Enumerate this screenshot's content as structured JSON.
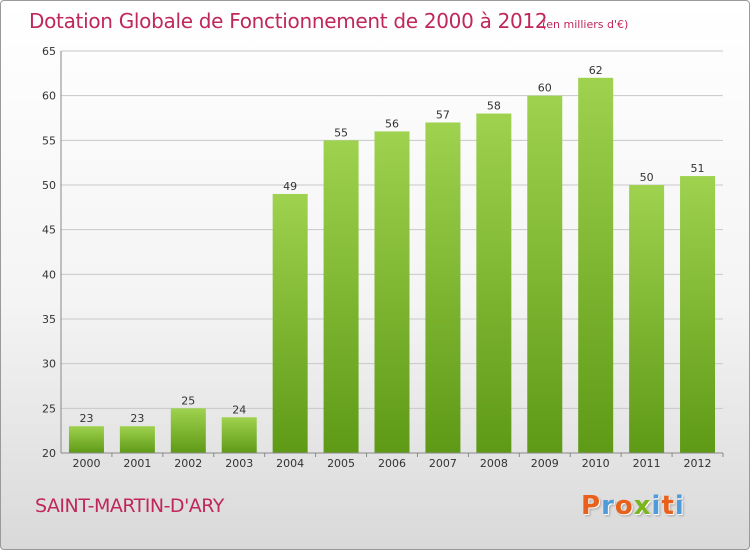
{
  "header": {
    "title": "Dotation Globale de Fonctionnement de 2000 à 2012",
    "unit": "(en milliers d'€)"
  },
  "footer": {
    "commune": "SAINT-MARTIN-D'ARY",
    "logo": "Proxiti",
    "logo_colors": [
      "#e8601c",
      "#4f9bd9",
      "#e8601c",
      "#7bb51c",
      "#4f9bd9",
      "#e8601c",
      "#4f9bd9"
    ]
  },
  "colors": {
    "title": "#c0275a",
    "bar_top": "#9fd24e",
    "bar_bottom": "#5e9a16",
    "grid": "#c8c8c8",
    "axis_text": "#333333"
  },
  "chart_data": {
    "type": "bar",
    "categories": [
      "2000",
      "2001",
      "2002",
      "2003",
      "2004",
      "2005",
      "2006",
      "2007",
      "2008",
      "2009",
      "2010",
      "2011",
      "2012"
    ],
    "values": [
      23,
      23,
      25,
      24,
      49,
      55,
      56,
      57,
      58,
      60,
      62,
      50,
      51
    ],
    "ylim": [
      20,
      65
    ],
    "yticks": [
      20,
      25,
      30,
      35,
      40,
      45,
      50,
      55,
      60,
      65
    ],
    "grid": true,
    "data_labels": true
  }
}
